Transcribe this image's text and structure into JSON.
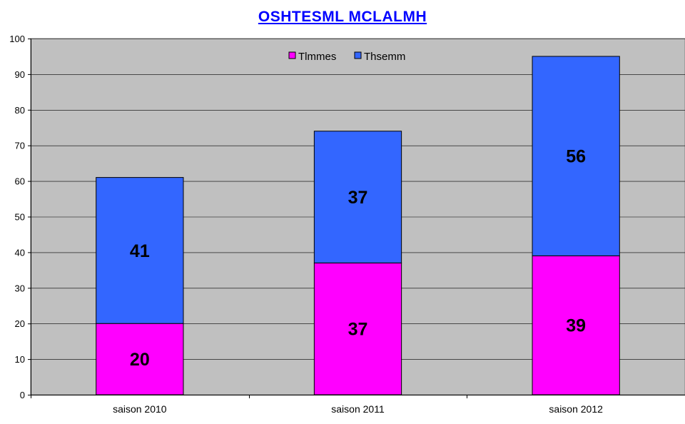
{
  "chart_data": {
    "type": "bar",
    "stacked": true,
    "title": "OSHTESML MCLALMH",
    "categories": [
      "saison 2010",
      "saison 2011",
      "saison 2012"
    ],
    "series": [
      {
        "name": "Tlmmes",
        "values": [
          20,
          37,
          39
        ],
        "color": "#ff00ff"
      },
      {
        "name": "Thsemm",
        "values": [
          41,
          37,
          56
        ],
        "color": "#3366ff"
      }
    ],
    "ylim": [
      0,
      100
    ],
    "yticks": [
      0,
      10,
      20,
      30,
      40,
      50,
      60,
      70,
      80,
      90,
      100
    ],
    "grid": true,
    "legend_position": "top-center",
    "plot_background": "#c0c0c0",
    "title_color": "#0000ff"
  }
}
